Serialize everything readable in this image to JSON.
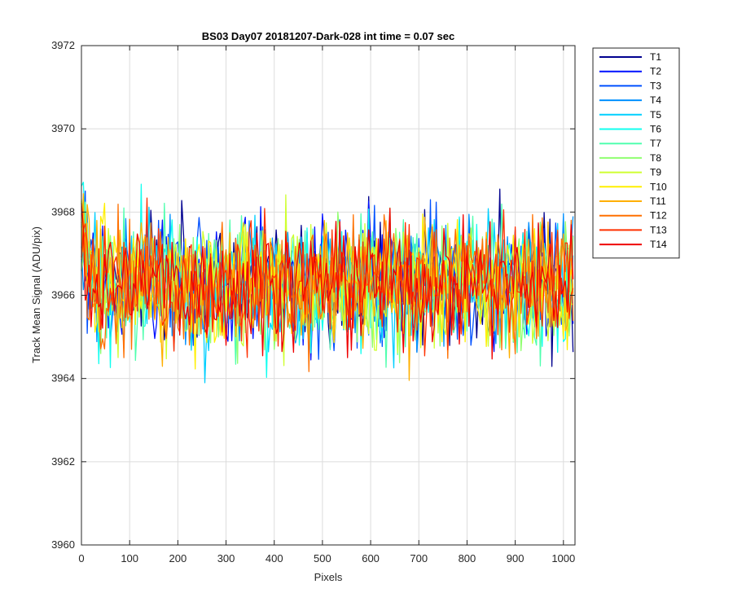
{
  "chart_data": {
    "type": "line",
    "title": "BS03 Day07 20181207-Dark-028 int time = 0.07 sec",
    "xlabel": "Pixels",
    "ylabel": "Track Mean Signal (ADU/pix)",
    "xlim": [
      0,
      1024
    ],
    "ylim": [
      3960,
      3972
    ],
    "xticks": [
      0,
      100,
      200,
      300,
      400,
      500,
      600,
      700,
      800,
      900,
      1000
    ],
    "yticks": [
      3960,
      3962,
      3964,
      3966,
      3968,
      3970,
      3972
    ],
    "xtick_labels": [
      "0",
      "100",
      "200",
      "300",
      "400",
      "500",
      "600",
      "700",
      "800",
      "900",
      "1000"
    ],
    "ytick_labels": [
      "3960",
      "3962",
      "3964",
      "3966",
      "3968",
      "3970",
      "3972"
    ],
    "grid": true,
    "legend_position": "outside-top-right",
    "x_start": 0,
    "x_end": 1023,
    "x_step": 4,
    "approx_mean": 3966.3,
    "approx_spread": 1.25,
    "series": [
      {
        "name": "T1",
        "color": "#00008f"
      },
      {
        "name": "T2",
        "color": "#0010ff"
      },
      {
        "name": "T3",
        "color": "#0050ff"
      },
      {
        "name": "T4",
        "color": "#0090ff"
      },
      {
        "name": "T5",
        "color": "#00cfff"
      },
      {
        "name": "T6",
        "color": "#10ffef"
      },
      {
        "name": "T7",
        "color": "#50ffaf"
      },
      {
        "name": "T8",
        "color": "#90ff70"
      },
      {
        "name": "T9",
        "color": "#cfff30"
      },
      {
        "name": "T10",
        "color": "#ffef00"
      },
      {
        "name": "T11",
        "color": "#ffaf00"
      },
      {
        "name": "T12",
        "color": "#ff7000"
      },
      {
        "name": "T13",
        "color": "#ff3000"
      },
      {
        "name": "T14",
        "color": "#ef0000"
      }
    ]
  }
}
